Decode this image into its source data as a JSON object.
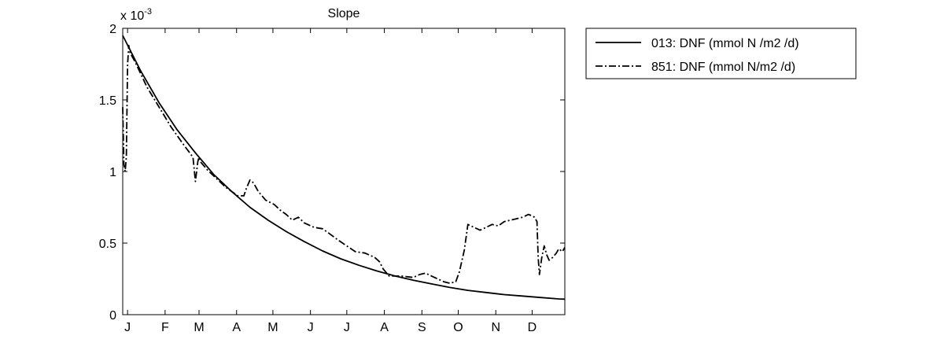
{
  "chart_data": {
    "type": "line",
    "title": "Slope",
    "xlabel": "",
    "ylabel": "",
    "y_scale_multiplier": {
      "base": "x 10",
      "exponent": "-3"
    },
    "xlim": [
      0,
      365
    ],
    "ylim": [
      0,
      0.002
    ],
    "x_ticks": [
      {
        "value": 4,
        "label": "J"
      },
      {
        "value": 35,
        "label": "F"
      },
      {
        "value": 63,
        "label": "M"
      },
      {
        "value": 94,
        "label": "A"
      },
      {
        "value": 124,
        "label": "M"
      },
      {
        "value": 155,
        "label": "J"
      },
      {
        "value": 185,
        "label": "J"
      },
      {
        "value": 216,
        "label": "A"
      },
      {
        "value": 247,
        "label": "S"
      },
      {
        "value": 277,
        "label": "O"
      },
      {
        "value": 308,
        "label": "N"
      },
      {
        "value": 338,
        "label": "D"
      }
    ],
    "y_ticks": [
      {
        "value": 0,
        "label": "0"
      },
      {
        "value": 0.0005,
        "label": "0.5"
      },
      {
        "value": 0.001,
        "label": "1"
      },
      {
        "value": 0.0015,
        "label": "1.5"
      },
      {
        "value": 0.002,
        "label": "2"
      }
    ],
    "grid": false,
    "legend_position": "outside-right-top",
    "series": [
      {
        "name": "013: DNF (mmol N /m2 /d)",
        "style": "solid",
        "color": "#000000",
        "x": [
          0,
          15,
          30,
          45,
          60,
          75,
          90,
          105,
          120,
          135,
          150,
          165,
          180,
          195,
          210,
          225,
          240,
          255,
          270,
          285,
          300,
          315,
          330,
          345,
          360,
          365
        ],
        "y": [
          0.00195,
          0.0017,
          0.00148,
          0.00129,
          0.00113,
          0.00098,
          0.00086,
          0.00075,
          0.00066,
          0.00058,
          0.00051,
          0.000445,
          0.00039,
          0.000345,
          0.000305,
          0.00027,
          0.00024,
          0.000215,
          0.00019,
          0.00017,
          0.000155,
          0.00014,
          0.00013,
          0.00012,
          0.00011,
          0.000108
        ]
      },
      {
        "name": "851: DNF (mmol N/m2 /d)",
        "style": "dashdot",
        "color": "#000000",
        "x": [
          0,
          1,
          2,
          3,
          4,
          5,
          6,
          8,
          10,
          15,
          20,
          30,
          40,
          50,
          58,
          60,
          62,
          63,
          64,
          66,
          70,
          75,
          80,
          85,
          90,
          95,
          100,
          102,
          105,
          108,
          112,
          118,
          125,
          130,
          135,
          140,
          145,
          150,
          158,
          165,
          170,
          178,
          185,
          192,
          200,
          208,
          212,
          215,
          220,
          230,
          240,
          245,
          250,
          255,
          260,
          265,
          270,
          275,
          278,
          282,
          285,
          290,
          295,
          300,
          305,
          310,
          315,
          320,
          325,
          330,
          335,
          338,
          340,
          342,
          343,
          344,
          346,
          348,
          350,
          352,
          355,
          358,
          360,
          363,
          365
        ],
        "y": [
          0.00145,
          0.00105,
          0.001,
          0.0011,
          0.00175,
          0.00188,
          0.00183,
          0.0018,
          0.00177,
          0.00168,
          0.00159,
          0.00145,
          0.00131,
          0.00119,
          0.0011,
          0.00093,
          0.00107,
          0.0011,
          0.00107,
          0.00105,
          0.00101,
          0.00097,
          0.00093,
          0.00089,
          0.00086,
          0.00083,
          0.00083,
          0.00088,
          0.00094,
          0.00092,
          0.00086,
          0.0008,
          0.00077,
          0.00073,
          0.0007,
          0.00066,
          0.00068,
          0.00064,
          0.00061,
          0.0006,
          0.00057,
          0.00052,
          0.00048,
          0.00044,
          0.00043,
          0.0004,
          0.00037,
          0.00032,
          0.00027,
          0.00027,
          0.00026,
          0.00028,
          0.00029,
          0.00027,
          0.00025,
          0.00023,
          0.00022,
          0.00023,
          0.0003,
          0.00045,
          0.00063,
          0.00061,
          0.00059,
          0.00061,
          0.00063,
          0.00062,
          0.00065,
          0.00066,
          0.00067,
          0.00068,
          0.0007,
          0.00069,
          0.00068,
          0.00065,
          0.0004,
          0.00028,
          0.0004,
          0.00048,
          0.00042,
          0.00038,
          0.0004,
          0.00043,
          0.00046,
          0.00044,
          0.00047
        ]
      }
    ]
  }
}
